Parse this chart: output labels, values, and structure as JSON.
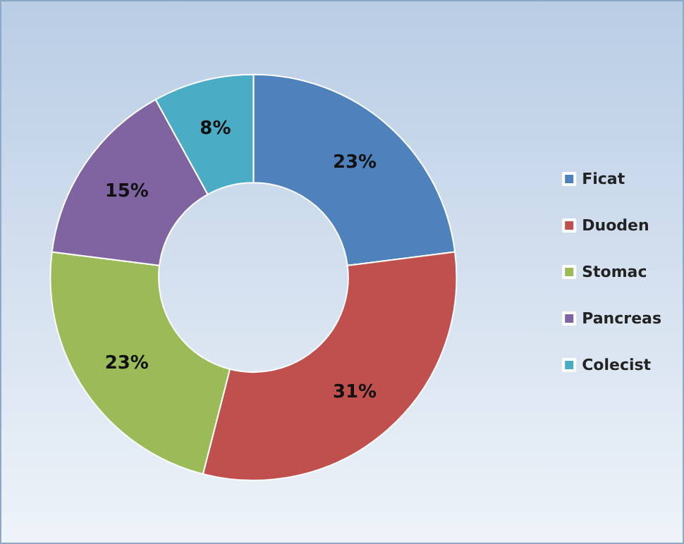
{
  "chart_data": {
    "type": "donut",
    "categories": [
      "Ficat",
      "Duoden",
      "Stomac",
      "Pancreas",
      "Colecist"
    ],
    "values": [
      23,
      31,
      23,
      15,
      8
    ],
    "colors": [
      "#4f81bd",
      "#c0504d",
      "#9bbb59",
      "#8064a2",
      "#4bacc6"
    ],
    "value_labels": [
      "23%",
      "31%",
      "23%",
      "15%",
      "8%"
    ],
    "legend": "right"
  }
}
